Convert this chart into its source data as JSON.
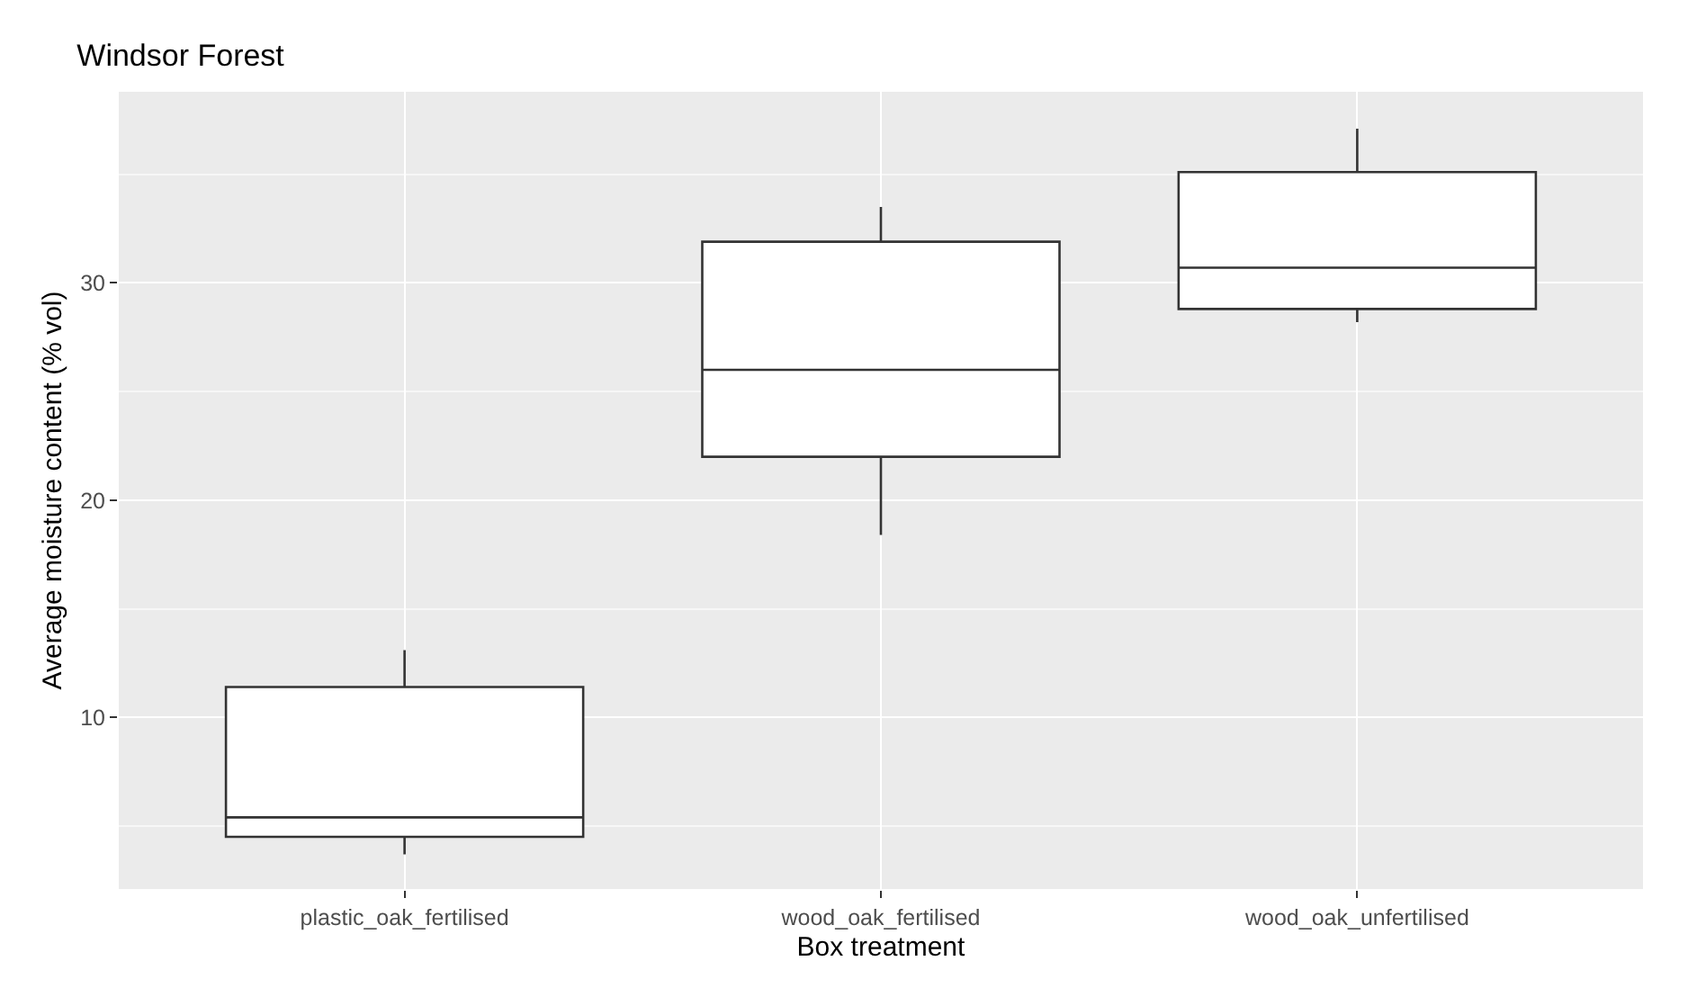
{
  "chart_data": {
    "type": "box",
    "title": "Windsor Forest",
    "xlabel": "Box treatment",
    "ylabel": "Average moisture content (% vol)",
    "categories": [
      "plastic_oak_fertilised",
      "wood_oak_fertilised",
      "wood_oak_unfertilised"
    ],
    "boxes": [
      {
        "low": 3.7,
        "q1": 4.5,
        "median": 5.4,
        "q3": 11.4,
        "high": 13.1
      },
      {
        "low": 18.4,
        "q1": 22.0,
        "median": 26.0,
        "q3": 31.9,
        "high": 33.5
      },
      {
        "low": 28.2,
        "q1": 28.8,
        "median": 30.7,
        "q3": 35.1,
        "high": 37.1
      }
    ],
    "color": "#333333",
    "ylim": [
      2.1,
      38.8
    ],
    "yticks": [
      10,
      20,
      30
    ],
    "grid": true,
    "legend": false
  }
}
